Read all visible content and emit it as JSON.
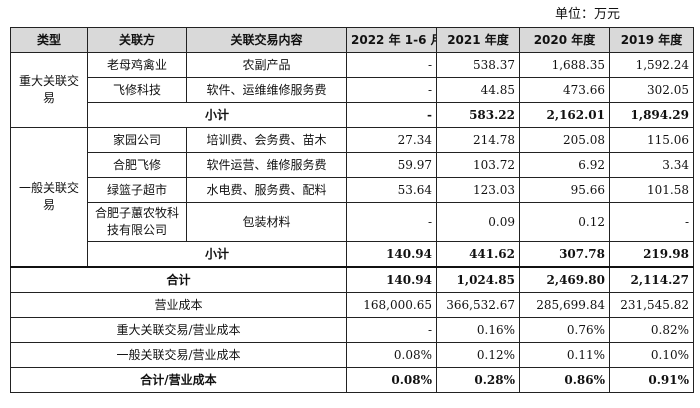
{
  "unit_label": "单位：万元",
  "headers": [
    "类型",
    "关联方",
    "关联交易内容",
    "2022 年 1-6 月",
    "2021 年度",
    "2020 年度",
    "2019 年度"
  ],
  "major": {
    "type_label": "重大关联交易",
    "rows": [
      {
        "party": "老母鸡禽业",
        "content": "农副产品",
        "v": [
          "-",
          "538.37",
          "1,688.35",
          "1,592.24"
        ]
      },
      {
        "party": "飞修科技",
        "content": "软件、运维维修服务费",
        "v": [
          "-",
          "44.85",
          "473.66",
          "302.05"
        ]
      }
    ],
    "subtotal_label": "小计",
    "subtotal": [
      "-",
      "583.22",
      "2,162.01",
      "1,894.29"
    ]
  },
  "general": {
    "type_label": "一般关联交易",
    "rows": [
      {
        "party": "家园公司",
        "content": "培训费、会务费、苗木",
        "v": [
          "27.34",
          "214.78",
          "205.08",
          "115.06"
        ]
      },
      {
        "party": "合肥飞修",
        "content": "软件运营、维修服务费",
        "v": [
          "59.97",
          "103.72",
          "6.92",
          "3.34"
        ]
      },
      {
        "party": "绿篮子超市",
        "content": "水电费、服务费、配料",
        "v": [
          "53.64",
          "123.03",
          "95.66",
          "101.58"
        ]
      },
      {
        "party": "合肥子蕙农牧科技有限公司",
        "content": "包装材料",
        "v": [
          "-",
          "0.09",
          "0.12",
          "-"
        ]
      }
    ],
    "subtotal_label": "小计",
    "subtotal": [
      "140.94",
      "441.62",
      "307.78",
      "219.98"
    ]
  },
  "total": {
    "label": "合计",
    "v": [
      "140.94",
      "1,024.85",
      "2,469.80",
      "2,114.27"
    ]
  },
  "cost": {
    "label": "营业成本",
    "v": [
      "168,000.65",
      "366,532.67",
      "285,699.84",
      "231,545.82"
    ]
  },
  "major_ratio": {
    "label": "重大关联交易/营业成本",
    "v": [
      "-",
      "0.16%",
      "0.76%",
      "0.82%"
    ]
  },
  "general_ratio": {
    "label": "一般关联交易/营业成本",
    "v": [
      "0.08%",
      "0.12%",
      "0.11%",
      "0.10%"
    ]
  },
  "total_ratio": {
    "label": "合计/营业成本",
    "v": [
      "0.08%",
      "0.28%",
      "0.86%",
      "0.91%"
    ]
  }
}
